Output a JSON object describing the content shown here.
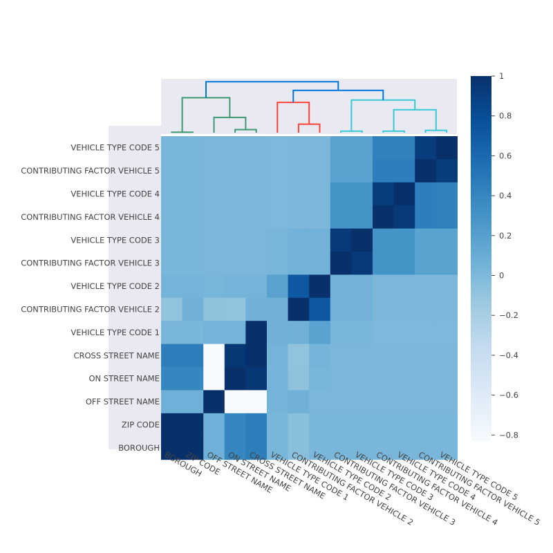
{
  "chart_data": {
    "type": "heatmap",
    "x_labels": [
      "BOROUGH",
      "ZIP CODE",
      "OFF STREET NAME",
      "ON STREET NAME",
      "CROSS STREET NAME",
      "VEHICLE TYPE CODE 1",
      "CONTRIBUTING FACTOR VEHICLE 2",
      "VEHICLE TYPE CODE 2",
      "CONTRIBUTING FACTOR VEHICLE 3",
      "VEHICLE TYPE CODE 3",
      "CONTRIBUTING FACTOR VEHICLE 4",
      "VEHICLE TYPE CODE 4",
      "CONTRIBUTING FACTOR VEHICLE 5",
      "VEHICLE TYPE CODE 5"
    ],
    "y_labels_top_to_bottom": [
      "VEHICLE TYPE CODE 5",
      "CONTRIBUTING FACTOR VEHICLE 5",
      "VEHICLE TYPE CODE 4",
      "CONTRIBUTING FACTOR VEHICLE 4",
      "VEHICLE TYPE CODE 3",
      "CONTRIBUTING FACTOR VEHICLE 3",
      "VEHICLE TYPE CODE 2",
      "CONTRIBUTING FACTOR VEHICLE 2",
      "VEHICLE TYPE CODE 1",
      "CROSS STREET NAME",
      "ON STREET NAME",
      "OFF STREET NAME",
      "ZIP CODE",
      "BOROUGH"
    ],
    "z_rows_top_to_bottom": [
      [
        0.02,
        0.02,
        0.01,
        0.01,
        0.01,
        0.0,
        0.01,
        0.01,
        0.18,
        0.18,
        0.43,
        0.43,
        0.92,
        1.0
      ],
      [
        0.02,
        0.02,
        0.01,
        0.01,
        0.01,
        0.0,
        0.01,
        0.01,
        0.18,
        0.18,
        0.45,
        0.45,
        1.0,
        0.92
      ],
      [
        0.02,
        0.02,
        0.01,
        0.01,
        0.01,
        0.0,
        0.01,
        0.01,
        0.3,
        0.3,
        0.92,
        1.0,
        0.45,
        0.43
      ],
      [
        0.02,
        0.02,
        0.01,
        0.01,
        0.01,
        0.0,
        0.01,
        0.01,
        0.3,
        0.3,
        1.0,
        0.93,
        0.45,
        0.43
      ],
      [
        0.02,
        0.02,
        0.01,
        0.01,
        0.01,
        0.02,
        0.05,
        0.05,
        0.94,
        1.0,
        0.3,
        0.3,
        0.18,
        0.18
      ],
      [
        0.02,
        0.02,
        0.01,
        0.01,
        0.01,
        0.02,
        0.05,
        0.05,
        1.0,
        0.94,
        0.3,
        0.3,
        0.18,
        0.18
      ],
      [
        0.04,
        0.04,
        0.03,
        0.04,
        0.04,
        0.18,
        0.72,
        1.0,
        0.05,
        0.05,
        0.01,
        0.01,
        0.01,
        0.01
      ],
      [
        -0.09,
        0.06,
        -0.08,
        -0.09,
        0.06,
        0.06,
        1.0,
        0.72,
        0.05,
        0.05,
        0.01,
        0.01,
        0.01,
        0.01
      ],
      [
        0.02,
        0.02,
        0.04,
        0.04,
        1.0,
        0.06,
        0.06,
        0.18,
        0.02,
        0.02,
        0.0,
        0.0,
        0.0,
        0.0
      ],
      [
        0.45,
        0.45,
        -0.83,
        0.95,
        1.0,
        0.04,
        -0.09,
        0.04,
        0.01,
        0.01,
        0.01,
        0.01,
        0.01,
        0.01
      ],
      [
        0.4,
        0.4,
        -0.83,
        1.0,
        0.95,
        0.04,
        -0.08,
        0.03,
        0.01,
        0.01,
        0.01,
        0.01,
        0.01,
        0.01
      ],
      [
        0.07,
        0.07,
        1.0,
        -0.83,
        -0.83,
        0.04,
        0.06,
        0.01,
        0.01,
        0.01,
        0.01,
        0.01,
        0.01,
        0.01
      ],
      [
        1.0,
        1.0,
        0.07,
        0.4,
        0.45,
        0.02,
        -0.05,
        0.02,
        0.02,
        0.02,
        0.02,
        0.02,
        0.02,
        0.02
      ],
      [
        1.0,
        1.0,
        0.07,
        0.4,
        0.45,
        0.02,
        -0.05,
        0.02,
        0.02,
        0.02,
        0.02,
        0.02,
        0.02,
        0.02
      ]
    ],
    "colorscale": "Blues",
    "zmin": -0.83,
    "zmax": 1,
    "colorbar_ticks": [
      "1",
      "0.8",
      "0.6",
      "0.4",
      "0.2",
      "0",
      "−0.2",
      "−0.4",
      "−0.6",
      "−0.8"
    ],
    "colorbar_tick_values": [
      1,
      0.8,
      0.6,
      0.4,
      0.2,
      0,
      -0.2,
      -0.4,
      -0.6,
      -0.8
    ],
    "dendrogram": {
      "position": "top",
      "clusters": [
        {
          "color": "#3d9970",
          "leaves": [
            "BOROUGH",
            "ZIP CODE",
            "OFF STREET NAME",
            "ON STREET NAME",
            "CROSS STREET NAME"
          ]
        },
        {
          "color": "#ff4136",
          "leaves": [
            "VEHICLE TYPE CODE 1",
            "CONTRIBUTING FACTOR VEHICLE 2",
            "VEHICLE TYPE CODE 2"
          ]
        },
        {
          "color": "#35c9d4",
          "leaves": [
            "CONTRIBUTING FACTOR VEHICLE 3",
            "VEHICLE TYPE CODE 3",
            "CONTRIBUTING FACTOR VEHICLE 4",
            "VEHICLE TYPE CODE 4",
            "CONTRIBUTING FACTOR VEHICLE 5",
            "VEHICLE TYPE CODE 5"
          ]
        },
        {
          "color": "#0074d9",
          "leaves": [
            "root links"
          ]
        }
      ]
    },
    "title": "",
    "xlabel": "",
    "ylabel": ""
  }
}
